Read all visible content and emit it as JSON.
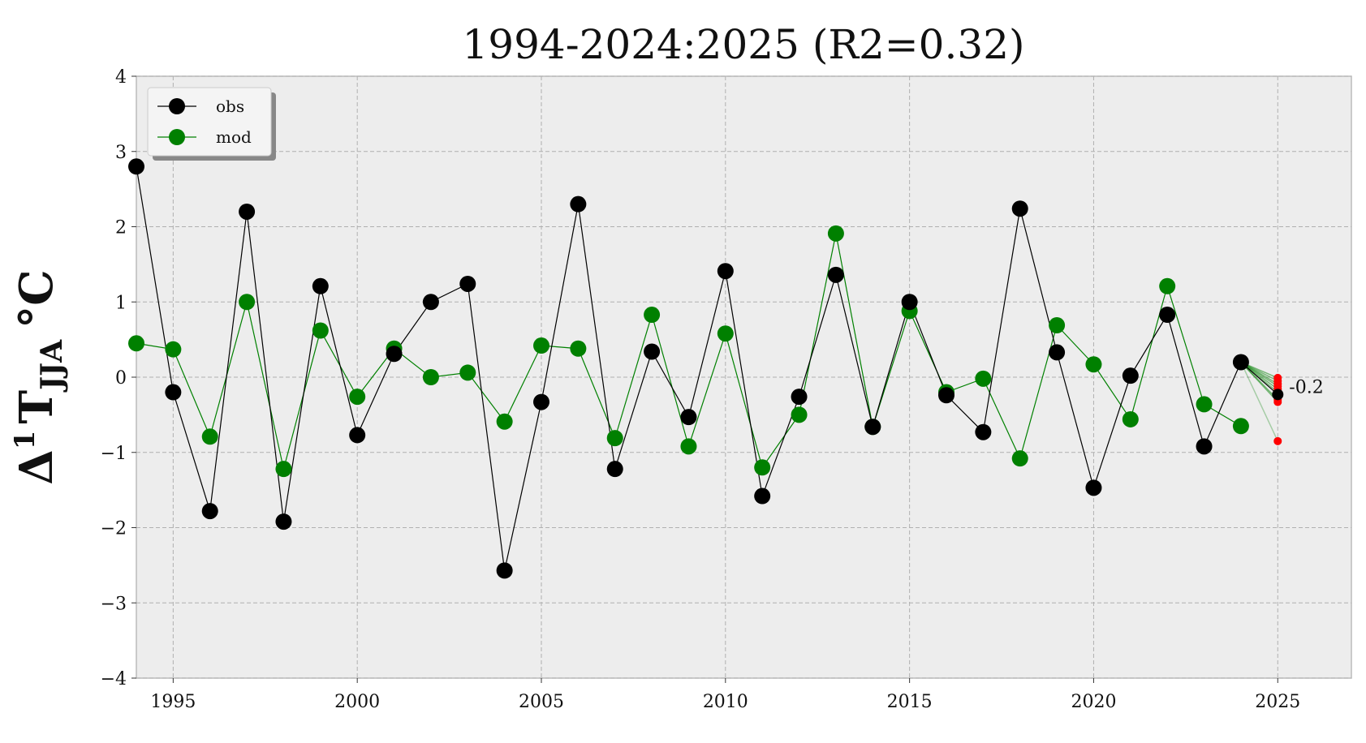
{
  "chart_data": {
    "type": "line",
    "title": "1994-2024:2025 (R2=0.32)",
    "ylabel_main": "Δ",
    "ylabel_sup": "1",
    "ylabel_T": "T",
    "ylabel_sub": "JJA",
    "ylabel_unit": "°C",
    "xlim": [
      1994,
      2027
    ],
    "ylim": [
      -4,
      4
    ],
    "xticks": [
      1995,
      2000,
      2005,
      2010,
      2015,
      2020,
      2025
    ],
    "yticks": [
      -4,
      -3,
      -2,
      -1,
      0,
      1,
      2,
      3,
      4
    ],
    "ytick_labels": [
      "−4",
      "−3",
      "−2",
      "−1",
      "0",
      "1",
      "2",
      "3",
      "4"
    ],
    "xtick_labels": [
      "1995",
      "2000",
      "2005",
      "2010",
      "2015",
      "2020",
      "2025"
    ],
    "grid": true,
    "legend_placement": "top-left",
    "x": [
      1994,
      1995,
      1996,
      1997,
      1998,
      1999,
      2000,
      2001,
      2002,
      2003,
      2004,
      2005,
      2006,
      2007,
      2008,
      2009,
      2010,
      2011,
      2012,
      2013,
      2014,
      2015,
      2016,
      2017,
      2018,
      2019,
      2020,
      2021,
      2022,
      2023,
      2024
    ],
    "series": [
      {
        "name": "obs",
        "color": "#000000",
        "values": [
          2.8,
          -0.2,
          -1.78,
          2.2,
          -1.92,
          1.21,
          -0.77,
          0.31,
          1.0,
          1.24,
          -2.57,
          -0.33,
          2.3,
          -1.22,
          0.34,
          -0.53,
          1.41,
          -1.58,
          -0.26,
          1.36,
          -0.66,
          1.0,
          -0.24,
          -0.73,
          2.24,
          0.33,
          -1.47,
          0.02,
          0.83,
          -0.92,
          0.2
        ]
      },
      {
        "name": "mod",
        "color": "#008000",
        "values": [
          0.45,
          0.37,
          -0.79,
          1.0,
          -1.22,
          0.62,
          -0.26,
          0.38,
          0.0,
          0.06,
          -0.59,
          0.42,
          0.38,
          -0.81,
          0.83,
          -0.92,
          0.58,
          -1.2,
          -0.5,
          1.91,
          -0.66,
          0.88,
          -0.2,
          -0.02,
          -1.08,
          0.69,
          0.17,
          -0.56,
          1.21,
          -0.36,
          -0.65
        ]
      }
    ],
    "forecast": {
      "year": 2025,
      "from_year": 2024,
      "from_value": 0.2,
      "ensemble": [
        -0.01,
        -0.05,
        -0.09,
        -0.12,
        -0.16,
        -0.2,
        -0.3,
        -0.33,
        -0.85
      ],
      "ensemble_color": "#ff0000",
      "mean": -0.23,
      "label": "-0.2"
    }
  }
}
